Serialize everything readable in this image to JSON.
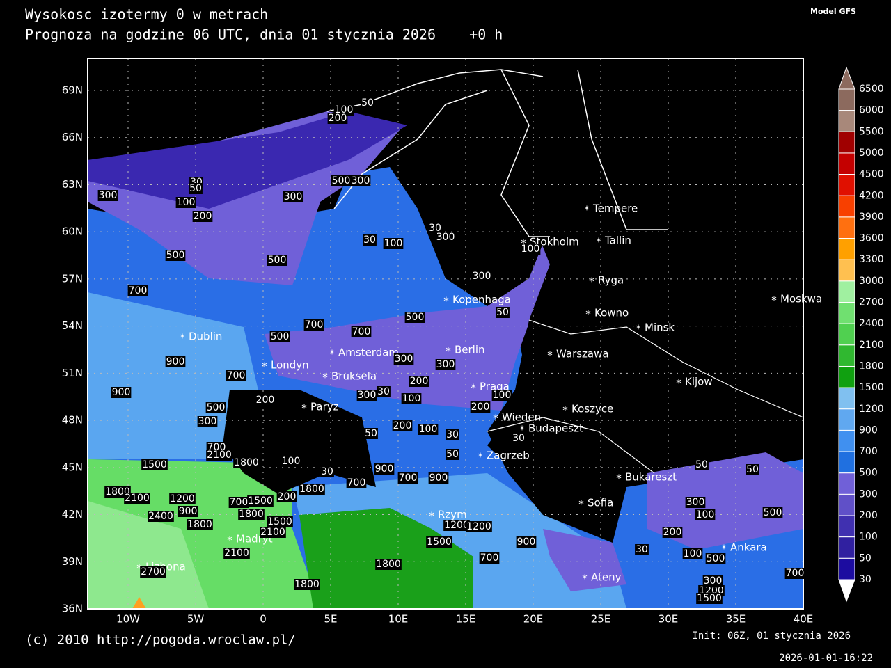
{
  "header": {
    "title": "Wysokosc izotermy 0 w metrach",
    "subtitle": "Prognoza na godzine 06 UTC, dnia 01 stycznia 2026    +0 h",
    "model": "Model GFS"
  },
  "axes": {
    "lat_labels": [
      "69N",
      "66N",
      "63N",
      "60N",
      "57N",
      "54N",
      "51N",
      "48N",
      "45N",
      "42N",
      "39N",
      "36N"
    ],
    "lon_labels": [
      "10W",
      "5W",
      "0",
      "5E",
      "10E",
      "15E",
      "20E",
      "25E",
      "30E",
      "35E",
      "40E"
    ]
  },
  "colorbar": {
    "levels": [
      6500,
      6000,
      5500,
      5000,
      4500,
      4200,
      3900,
      3600,
      3300,
      3000,
      2700,
      2400,
      2100,
      1800,
      1500,
      1200,
      900,
      700,
      500,
      300,
      200,
      100,
      50,
      30
    ],
    "colors": [
      "#8c6a5e",
      "#a8887a",
      "#a00000",
      "#c40000",
      "#e01000",
      "#f84000",
      "#ff7010",
      "#ffa000",
      "#ffc050",
      "#a0f0a0",
      "#70e070",
      "#50d050",
      "#30b830",
      "#10a010",
      "#80c0f0",
      "#60a8f0",
      "#4090f0",
      "#2070e0",
      "#7060d8",
      "#6050c8",
      "#4030b0",
      "#3020a0",
      "#1c0ca0"
    ]
  },
  "cities": [
    "Tempere",
    "Tallin",
    "Stokholm",
    "Ryga",
    "Moskwa",
    "Kopenhaga",
    "Kowno",
    "Minsk",
    "Dublin",
    "Berlin",
    "Amsterdam",
    "Warszawa",
    "Londyn",
    "Bruksela",
    "Kijow",
    "Paryz",
    "Praga",
    "Koszyce",
    "Wieden",
    "Budapeszt",
    "Zagrzeb",
    "Bukareszt",
    "Sofia",
    "Madryt",
    "Rzym",
    "Ankara",
    "Ateny",
    "Lizbona"
  ],
  "contour_labels": [
    "100",
    "50",
    "200",
    "30",
    "50",
    "300",
    "100",
    "200",
    "300",
    "500",
    "300",
    "500",
    "500",
    "700",
    "30",
    "300",
    "30",
    "100",
    "100",
    "300",
    "50",
    "500",
    "700",
    "700",
    "500",
    "900",
    "300",
    "300",
    "700",
    "200",
    "900",
    "300",
    "30",
    "100",
    "200",
    "100",
    "200",
    "500",
    "300",
    "50",
    "200",
    "100",
    "30",
    "30",
    "700",
    "2100",
    "1800",
    "1500",
    "100",
    "50",
    "30",
    "900",
    "700",
    "900",
    "700",
    "1800",
    "1800",
    "2100",
    "1200",
    "700",
    "1500",
    "200",
    "900",
    "2400",
    "1800",
    "1500",
    "1800",
    "2100",
    "2100",
    "1200",
    "1200",
    "1500",
    "900",
    "700",
    "1800",
    "2700",
    "1800",
    "30",
    "300",
    "100",
    "500",
    "200",
    "50",
    "50",
    "500",
    "700",
    "1200",
    "1500",
    "300",
    "100"
  ],
  "footer": {
    "copyright": "(c) 2010 http://pogoda.wroclaw.pl/",
    "init": "Init: 06Z, 01 stycznia 2026",
    "timestamp": "2026-01-01-16:22"
  }
}
